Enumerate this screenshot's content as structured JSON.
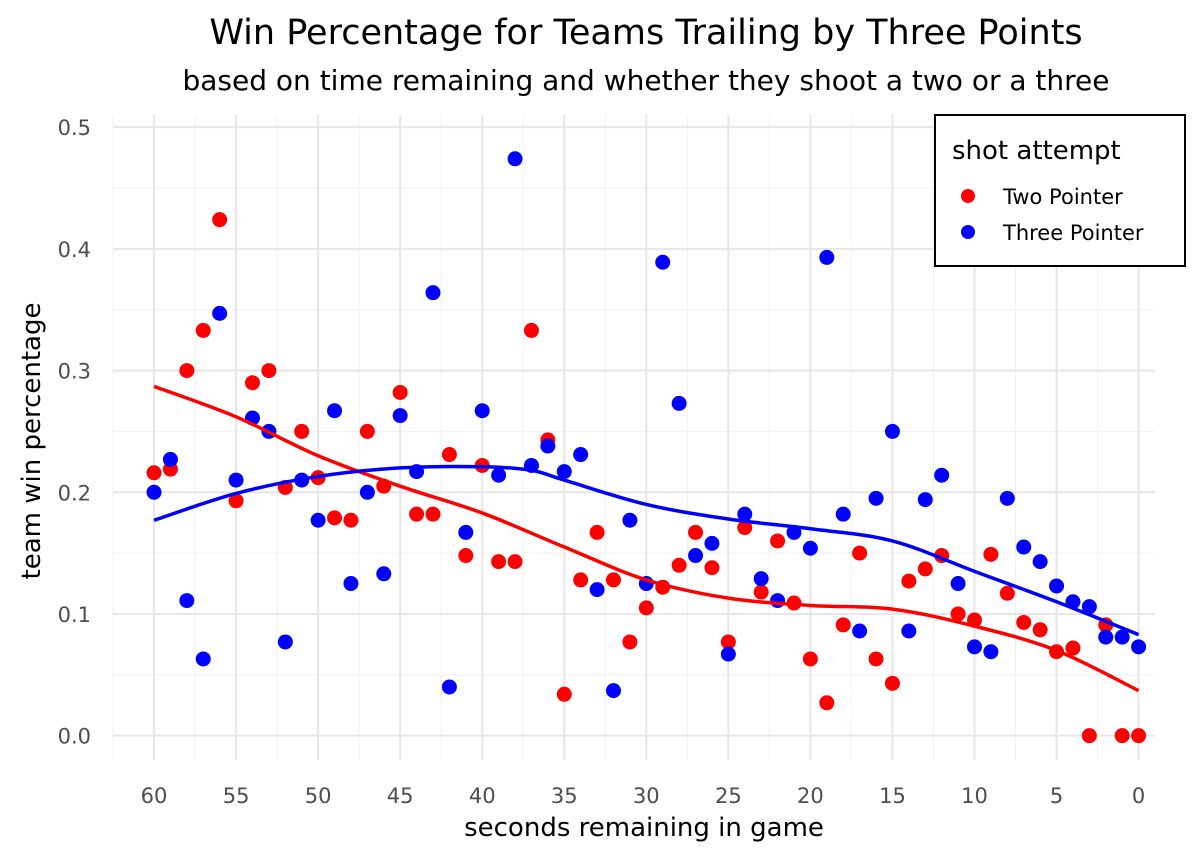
{
  "chart_data": {
    "type": "scatter",
    "title": "Win Percentage for Teams Trailing by Three Points",
    "subtitle": "based on time remaining and whether they shoot a two or a three",
    "xlabel": "seconds remaining in game",
    "ylabel": "team win percentage",
    "x_reversed": true,
    "xlim": [
      62.5,
      -1
    ],
    "ylim": [
      -0.02,
      0.51
    ],
    "xticks": [
      60,
      55,
      50,
      45,
      40,
      35,
      30,
      25,
      20,
      15,
      10,
      5,
      0
    ],
    "yticks": [
      0.0,
      0.1,
      0.2,
      0.3,
      0.4,
      0.5
    ],
    "ytick_labels": [
      "0.0",
      "0.1",
      "0.2",
      "0.3",
      "0.4",
      "0.5"
    ],
    "grid": true,
    "legend": {
      "title": "shot attempt",
      "position": "top-right"
    },
    "series": [
      {
        "name": "Two Pointer",
        "color": "#ff0000",
        "points": [
          [
            60,
            0.216
          ],
          [
            59,
            0.219
          ],
          [
            58,
            0.3
          ],
          [
            57,
            0.333
          ],
          [
            56,
            0.424
          ],
          [
            55,
            0.193
          ],
          [
            54,
            0.29
          ],
          [
            53,
            0.3
          ],
          [
            52,
            0.204
          ],
          [
            51,
            0.25
          ],
          [
            50,
            0.212
          ],
          [
            49,
            0.179
          ],
          [
            48,
            0.177
          ],
          [
            47,
            0.25
          ],
          [
            46,
            0.205
          ],
          [
            45,
            0.282
          ],
          [
            44,
            0.182
          ],
          [
            43,
            0.182
          ],
          [
            42,
            0.231
          ],
          [
            41,
            0.148
          ],
          [
            40,
            0.222
          ],
          [
            39,
            0.143
          ],
          [
            38,
            0.143
          ],
          [
            37,
            0.333
          ],
          [
            36,
            0.243
          ],
          [
            35,
            0.034
          ],
          [
            34,
            0.128
          ],
          [
            33,
            0.167
          ],
          [
            32,
            0.128
          ],
          [
            31,
            0.077
          ],
          [
            30,
            0.105
          ],
          [
            29,
            0.122
          ],
          [
            28,
            0.14
          ],
          [
            27,
            0.167
          ],
          [
            26,
            0.138
          ],
          [
            25,
            0.077
          ],
          [
            24,
            0.171
          ],
          [
            23,
            0.118
          ],
          [
            22,
            0.16
          ],
          [
            21,
            0.109
          ],
          [
            20,
            0.063
          ],
          [
            19,
            0.027
          ],
          [
            18,
            0.091
          ],
          [
            17,
            0.15
          ],
          [
            16,
            0.063
          ],
          [
            15,
            0.043
          ],
          [
            14,
            0.127
          ],
          [
            13,
            0.137
          ],
          [
            12,
            0.148
          ],
          [
            11,
            0.1
          ],
          [
            10,
            0.095
          ],
          [
            9,
            0.149
          ],
          [
            8,
            0.117
          ],
          [
            7,
            0.093
          ],
          [
            6,
            0.087
          ],
          [
            5,
            0.069
          ],
          [
            4,
            0.072
          ],
          [
            3,
            0.0
          ],
          [
            2,
            0.091
          ],
          [
            1,
            0.0
          ],
          [
            0,
            0.0
          ]
        ],
        "smooth": [
          [
            60,
            0.287
          ],
          [
            55,
            0.262
          ],
          [
            50,
            0.23
          ],
          [
            45,
            0.205
          ],
          [
            40,
            0.183
          ],
          [
            35,
            0.155
          ],
          [
            30,
            0.128
          ],
          [
            25,
            0.113
          ],
          [
            20,
            0.107
          ],
          [
            15,
            0.104
          ],
          [
            10,
            0.09
          ],
          [
            5,
            0.07
          ],
          [
            0,
            0.037
          ]
        ]
      },
      {
        "name": "Three Pointer",
        "color": "#0000ff",
        "points": [
          [
            60,
            0.2
          ],
          [
            59,
            0.227
          ],
          [
            58,
            0.111
          ],
          [
            57,
            0.063
          ],
          [
            56,
            0.347
          ],
          [
            55,
            0.21
          ],
          [
            54,
            0.261
          ],
          [
            53,
            0.25
          ],
          [
            52,
            0.077
          ],
          [
            51,
            0.21
          ],
          [
            50,
            0.177
          ],
          [
            49,
            0.267
          ],
          [
            48,
            0.125
          ],
          [
            47,
            0.2
          ],
          [
            46,
            0.133
          ],
          [
            45,
            0.263
          ],
          [
            44,
            0.217
          ],
          [
            43,
            0.364
          ],
          [
            42,
            0.04
          ],
          [
            41,
            0.167
          ],
          [
            40,
            0.267
          ],
          [
            39,
            0.214
          ],
          [
            38,
            0.474
          ],
          [
            37,
            0.222
          ],
          [
            36,
            0.238
          ],
          [
            35,
            0.217
          ],
          [
            34,
            0.231
          ],
          [
            33,
            0.12
          ],
          [
            32,
            0.037
          ],
          [
            31,
            0.177
          ],
          [
            30,
            0.125
          ],
          [
            29,
            0.389
          ],
          [
            28,
            0.273
          ],
          [
            27,
            0.148
          ],
          [
            26,
            0.158
          ],
          [
            25,
            0.067
          ],
          [
            24,
            0.182
          ],
          [
            23,
            0.129
          ],
          [
            22,
            0.111
          ],
          [
            21,
            0.167
          ],
          [
            20,
            0.154
          ],
          [
            19,
            0.393
          ],
          [
            18,
            0.182
          ],
          [
            17,
            0.086
          ],
          [
            16,
            0.195
          ],
          [
            15,
            0.25
          ],
          [
            14,
            0.086
          ],
          [
            13,
            0.194
          ],
          [
            12,
            0.214
          ],
          [
            11,
            0.125
          ],
          [
            10,
            0.073
          ],
          [
            9,
            0.069
          ],
          [
            8,
            0.195
          ],
          [
            7,
            0.155
          ],
          [
            6,
            0.143
          ],
          [
            5,
            0.123
          ],
          [
            4,
            0.11
          ],
          [
            3,
            0.106
          ],
          [
            2,
            0.081
          ],
          [
            1,
            0.081
          ],
          [
            0,
            0.073
          ]
        ],
        "smooth": [
          [
            60,
            0.177
          ],
          [
            55,
            0.199
          ],
          [
            50,
            0.213
          ],
          [
            45,
            0.22
          ],
          [
            40,
            0.221
          ],
          [
            37,
            0.218
          ],
          [
            35,
            0.21
          ],
          [
            30,
            0.19
          ],
          [
            25,
            0.178
          ],
          [
            20,
            0.17
          ],
          [
            15,
            0.16
          ],
          [
            10,
            0.135
          ],
          [
            5,
            0.11
          ],
          [
            0,
            0.083
          ]
        ]
      }
    ]
  }
}
